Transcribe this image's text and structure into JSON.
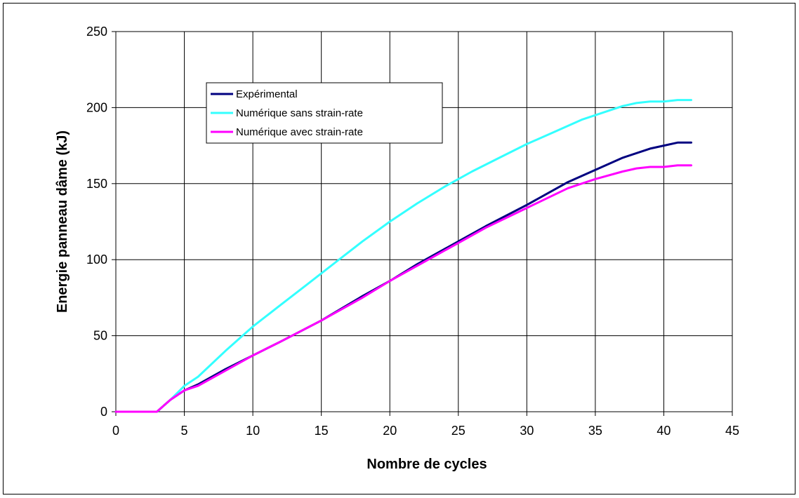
{
  "chart_data": {
    "type": "line",
    "title": "",
    "xlabel": "Nombre de cycles",
    "ylabel": "Energie panneau dâme (kJ)",
    "xlim": [
      0,
      45
    ],
    "ylim": [
      0,
      250
    ],
    "xticks": [
      0,
      5,
      10,
      15,
      20,
      25,
      30,
      35,
      40,
      45
    ],
    "yticks": [
      0,
      50,
      100,
      150,
      200,
      250
    ],
    "grid": true,
    "legend_position": "upper-left inside plot",
    "series": [
      {
        "name": "Expérimental",
        "color": "#000080",
        "x": [
          0,
          3,
          3.5,
          4,
          5,
          6,
          8,
          10,
          12,
          15,
          18,
          20,
          22,
          25,
          27,
          30,
          33,
          35,
          37,
          39,
          40,
          41,
          42
        ],
        "y": [
          0,
          0,
          4,
          8,
          14,
          18,
          28,
          37,
          46,
          60,
          76,
          86,
          97,
          112,
          122,
          136,
          151,
          159,
          167,
          173,
          175,
          177,
          177
        ]
      },
      {
        "name": "Numérique sans strain-rate",
        "color": "#33ffff",
        "x": [
          0,
          3,
          3.5,
          4,
          5,
          6,
          8,
          10,
          12,
          14,
          16,
          18,
          20,
          22,
          24,
          26,
          28,
          30,
          32,
          34,
          36,
          37,
          38,
          39,
          40,
          41,
          42
        ],
        "y": [
          0,
          0,
          4,
          8,
          17,
          23,
          40,
          56,
          70,
          84,
          98,
          112,
          125,
          137,
          148,
          158,
          167,
          176,
          184,
          192,
          198,
          201,
          203,
          204,
          204,
          205,
          205
        ]
      },
      {
        "name": "Numérique avec strain-rate",
        "color": "#ff00ff",
        "x": [
          0,
          3,
          3.5,
          4,
          5,
          6,
          8,
          10,
          12,
          15,
          18,
          20,
          22,
          25,
          27,
          30,
          33,
          35,
          37,
          38,
          39,
          40,
          41,
          42
        ],
        "y": [
          0,
          0,
          4,
          8,
          14,
          17,
          27,
          37,
          46,
          60,
          75,
          86,
          96,
          111,
          121,
          134,
          147,
          153,
          158,
          160,
          161,
          161,
          162,
          162
        ]
      }
    ]
  }
}
